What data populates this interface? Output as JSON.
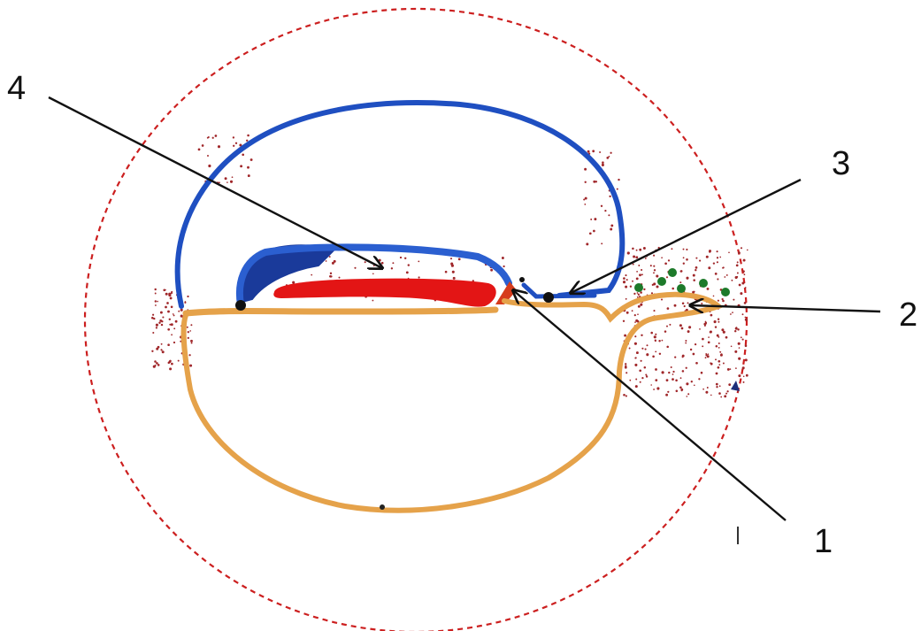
{
  "labels": {
    "one": "1",
    "two": "2",
    "three": "3",
    "four": "4"
  },
  "colors": {
    "background": "#ffffff",
    "outer_circle": "#cc1f1f",
    "upper_membrane": "#1f4fc1",
    "lower_membrane": "#e5a24a",
    "plate": "#e31515",
    "dots": "#a0272a",
    "green_dots": "#1d7a2a",
    "arrows": "#111111"
  }
}
